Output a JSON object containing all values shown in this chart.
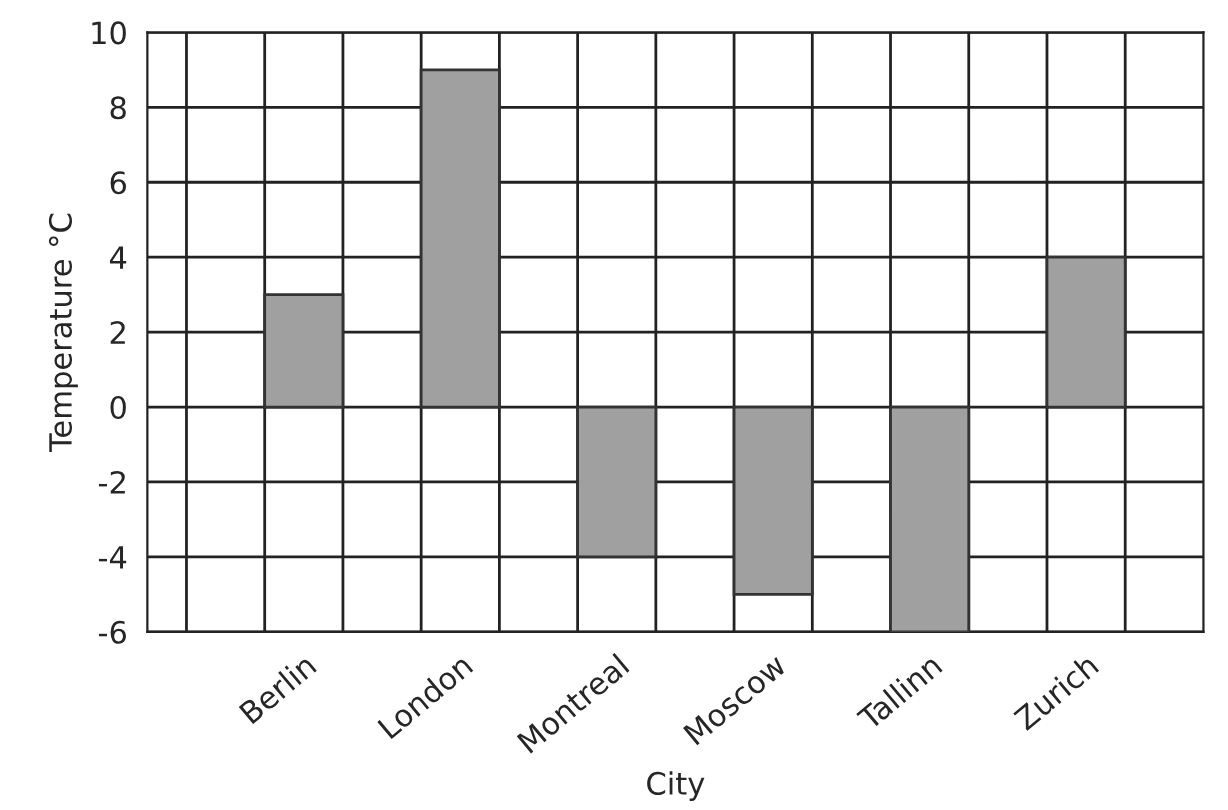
{
  "chart_data": {
    "type": "bar",
    "xlabel": "City",
    "ylabel": "Temperature °C",
    "categories": [
      "Berlin",
      "London",
      "Montreal",
      "Moscow",
      "Tallinn",
      "Zurich"
    ],
    "values": [
      3,
      9,
      -4,
      -5,
      -6,
      4
    ],
    "color": "#a0a0a0",
    "ylim": [
      -6,
      10
    ],
    "yticks": [
      -6,
      -4,
      -2,
      0,
      2,
      4,
      6,
      8,
      10
    ],
    "grid": true
  }
}
